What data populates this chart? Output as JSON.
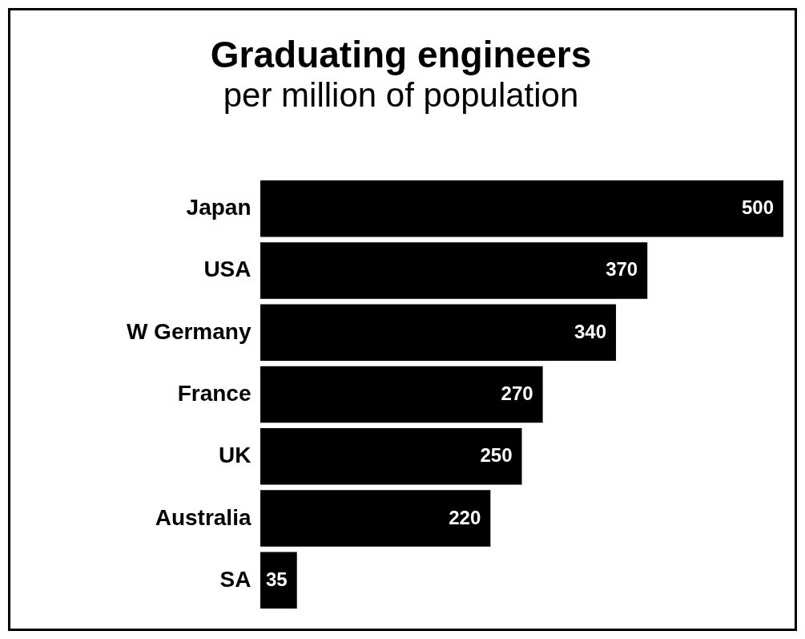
{
  "chart_data": {
    "type": "bar",
    "orientation": "horizontal",
    "title": "Graduating engineers",
    "subtitle": "per million of population",
    "categories": [
      "Japan",
      "USA",
      "W Germany",
      "France",
      "UK",
      "Australia",
      "SA"
    ],
    "values": [
      500,
      370,
      340,
      270,
      250,
      220,
      35
    ],
    "color": "#000000",
    "xlim": [
      0,
      500
    ],
    "data_labels": true,
    "grid": false
  }
}
